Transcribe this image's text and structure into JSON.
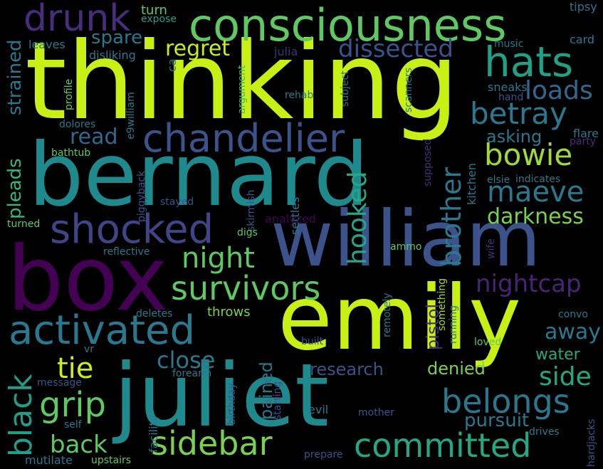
{
  "colors": {
    "background": "#000000",
    "lime": "#c8f015",
    "green": "#5ec962",
    "teal_green": "#21a585",
    "teal": "#1f8a8d",
    "blue": "#3b528b",
    "indigo": "#414487",
    "purple": "#440154"
  },
  "words": [
    {
      "text": "thinking",
      "color": "#c8f015"
    },
    {
      "text": "bernard",
      "color": "#1f8a8d"
    },
    {
      "text": "box",
      "color": "#440154"
    },
    {
      "text": "william",
      "color": "#3b528b"
    },
    {
      "text": "emily",
      "color": "#c8f015"
    },
    {
      "text": "juliet",
      "color": "#1f8a8d"
    },
    {
      "text": "consciousness",
      "color": "#5ec962"
    },
    {
      "text": "chandelier",
      "color": "#3b528b"
    },
    {
      "text": "activated",
      "color": "#2a788e"
    },
    {
      "text": "shocked",
      "color": "#414487"
    },
    {
      "text": "survivors",
      "color": "#5ec962"
    },
    {
      "text": "sidebar",
      "color": "#7ad151"
    },
    {
      "text": "committed",
      "color": "#22a884"
    },
    {
      "text": "belongs",
      "color": "#2a788e"
    },
    {
      "text": "hats",
      "color": "#1fa188"
    },
    {
      "text": "drunk",
      "color": "#472d7b"
    },
    {
      "text": "betray",
      "color": "#2a788e"
    },
    {
      "text": "bowie",
      "color": "#a0da39"
    },
    {
      "text": "maeve",
      "color": "#2a788e"
    },
    {
      "text": "grip",
      "color": "#5ec962"
    },
    {
      "text": "black",
      "color": "#1f9e89"
    },
    {
      "text": "dissected",
      "color": "#3b528b"
    },
    {
      "text": "nightcap",
      "color": "#482475"
    },
    {
      "text": "loads",
      "color": "#31688e"
    },
    {
      "text": "darkness",
      "color": "#7ad151"
    },
    {
      "text": "night",
      "color": "#5ec962"
    },
    {
      "text": "brother",
      "color": "#2a788e"
    },
    {
      "text": "hooked",
      "color": "#22a884"
    },
    {
      "text": "close",
      "color": "#2a788e"
    },
    {
      "text": "tie",
      "color": "#c8f015"
    },
    {
      "text": "back",
      "color": "#5ec962"
    },
    {
      "text": "pleads",
      "color": "#35b779"
    },
    {
      "text": "strained",
      "color": "#2a788e"
    },
    {
      "text": "regret",
      "color": "#c8f015"
    },
    {
      "text": "read",
      "color": "#31688e"
    },
    {
      "text": "spare",
      "color": "#2a788e"
    },
    {
      "text": "away",
      "color": "#2a788e"
    },
    {
      "text": "side",
      "color": "#22a884"
    },
    {
      "text": "research",
      "color": "#3b528b"
    },
    {
      "text": "denied",
      "color": "#7ad151"
    },
    {
      "text": "pursuit",
      "color": "#2a788e"
    },
    {
      "text": "water",
      "color": "#22a884"
    },
    {
      "text": "pistol",
      "color": "#472d7b"
    },
    {
      "text": "pained",
      "color": "#2a788e"
    },
    {
      "text": "asking",
      "color": "#2a788e"
    },
    {
      "text": "turn",
      "color": "#5ec962"
    },
    {
      "text": "expose",
      "color": "#1f9e89"
    },
    {
      "text": "tipsy",
      "color": "#2a788e"
    },
    {
      "text": "card",
      "color": "#2a788e"
    },
    {
      "text": "music",
      "color": "#2a788e"
    },
    {
      "text": "leaves",
      "color": "#2a788e"
    },
    {
      "text": "disliking",
      "color": "#2a788e"
    },
    {
      "text": "ca",
      "color": "#2a788e"
    },
    {
      "text": "julia",
      "color": "#472d7b"
    },
    {
      "text": "profile",
      "color": "#5ec962"
    },
    {
      "text": "e9william",
      "color": "#2a788e"
    },
    {
      "text": "argument",
      "color": "#35b779"
    },
    {
      "text": "subject",
      "color": "#2a788e"
    },
    {
      "text": "scanners",
      "color": "#2a788e"
    },
    {
      "text": "rehab",
      "color": "#2a788e"
    },
    {
      "text": "sneaks",
      "color": "#2a788e"
    },
    {
      "text": "hand",
      "color": "#3b528b"
    },
    {
      "text": "flare",
      "color": "#2a788e"
    },
    {
      "text": "party",
      "color": "#472d7b"
    },
    {
      "text": "dolores",
      "color": "#2a788e"
    },
    {
      "text": "bathtub",
      "color": "#5ec962"
    },
    {
      "text": "supposed",
      "color": "#472d7b"
    },
    {
      "text": "elsie",
      "color": "#2a788e"
    },
    {
      "text": "indicates",
      "color": "#2a788e"
    },
    {
      "text": "kitchen",
      "color": "#2a788e"
    },
    {
      "text": "piggyback",
      "color": "#3b528b"
    },
    {
      "text": "skirmish",
      "color": "#3b528b"
    },
    {
      "text": "settles",
      "color": "#2a788e"
    },
    {
      "text": "stayed",
      "color": "#3b528b"
    },
    {
      "text": "turned",
      "color": "#5ec962"
    },
    {
      "text": "digs",
      "color": "#5ec962"
    },
    {
      "text": "analyzed",
      "color": "#440154"
    },
    {
      "text": "reflective",
      "color": "#2a788e"
    },
    {
      "text": "ammo",
      "color": "#5ec962"
    },
    {
      "text": "wife",
      "color": "#472d7b"
    },
    {
      "text": "something",
      "color": "#a0da39"
    },
    {
      "text": "running",
      "color": "#2a788e"
    },
    {
      "text": "remotely",
      "color": "#2a788e"
    },
    {
      "text": "built",
      "color": "#3b528b"
    },
    {
      "text": "deletes",
      "color": "#2a788e"
    },
    {
      "text": "throws",
      "color": "#7ad151"
    },
    {
      "text": "convo",
      "color": "#2a788e"
    },
    {
      "text": "vr",
      "color": "#2a788e"
    },
    {
      "text": "loved",
      "color": "#5ec962"
    },
    {
      "text": "forearm",
      "color": "#2a788e"
    },
    {
      "text": "message",
      "color": "#3b528b"
    },
    {
      "text": "birthday",
      "color": "#3b528b"
    },
    {
      "text": "starting",
      "color": "#3b528b"
    },
    {
      "text": "facility",
      "color": "#2a788e"
    },
    {
      "text": "evil",
      "color": "#2a788e"
    },
    {
      "text": "mother",
      "color": "#3b528b"
    },
    {
      "text": "self",
      "color": "#2a788e"
    },
    {
      "text": "drives",
      "color": "#2a788e"
    },
    {
      "text": "hardjacks",
      "color": "#3b528b"
    },
    {
      "text": "prepare",
      "color": "#3b528b"
    },
    {
      "text": "mutilate",
      "color": "#2a788e"
    },
    {
      "text": "upstairs",
      "color": "#5ec962"
    }
  ]
}
